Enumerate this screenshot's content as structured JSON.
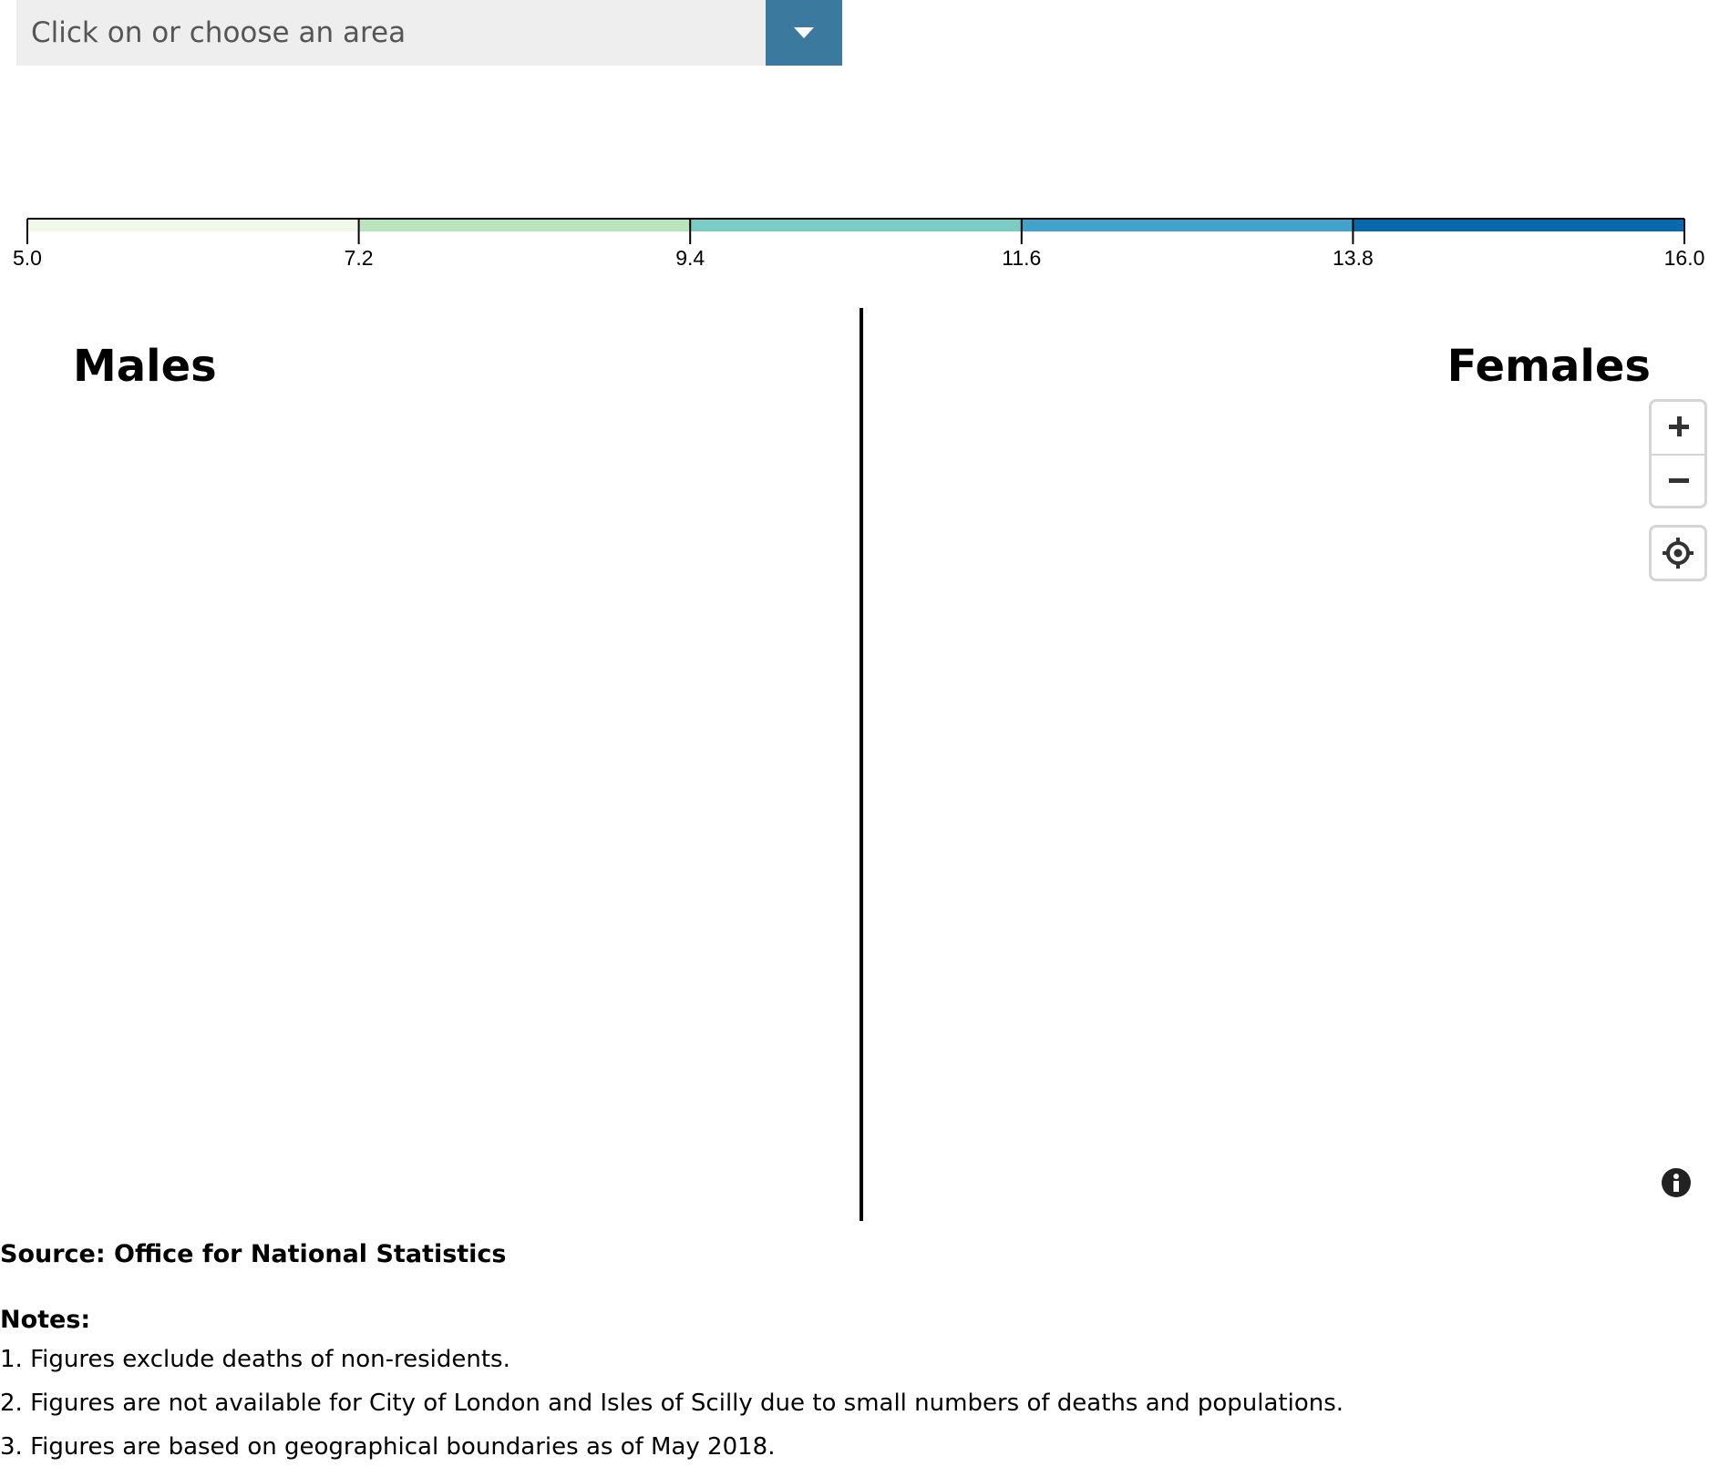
{
  "area_select": {
    "placeholder": "Click on or choose an area",
    "button_color": "#3b799f"
  },
  "legend": {
    "breaks": [
      5.0,
      7.2,
      9.4,
      11.6,
      13.8,
      16.0
    ],
    "tick_labels": [
      "5.0",
      "7.2",
      "9.4",
      "11.6",
      "13.8",
      "16.0"
    ],
    "colors": [
      "#f0f9e8",
      "#bae4bc",
      "#7bccc4",
      "#43a2ca",
      "#0868ac"
    ]
  },
  "map": {
    "left_title": "Males",
    "right_title": "Females",
    "controls": {
      "zoom_in": "zoom-in",
      "zoom_out": "zoom-out",
      "locate": "locate-icon",
      "info": "info-icon"
    }
  },
  "source": "Source: Office for National Statistics",
  "notes": {
    "heading": "Notes:",
    "items": [
      "1. Figures exclude deaths of non-residents.",
      "2. Figures are not available for City of London and Isles of Scilly due to small numbers of deaths and populations.",
      "3. Figures are based on geographical boundaries as of May 2018."
    ]
  }
}
